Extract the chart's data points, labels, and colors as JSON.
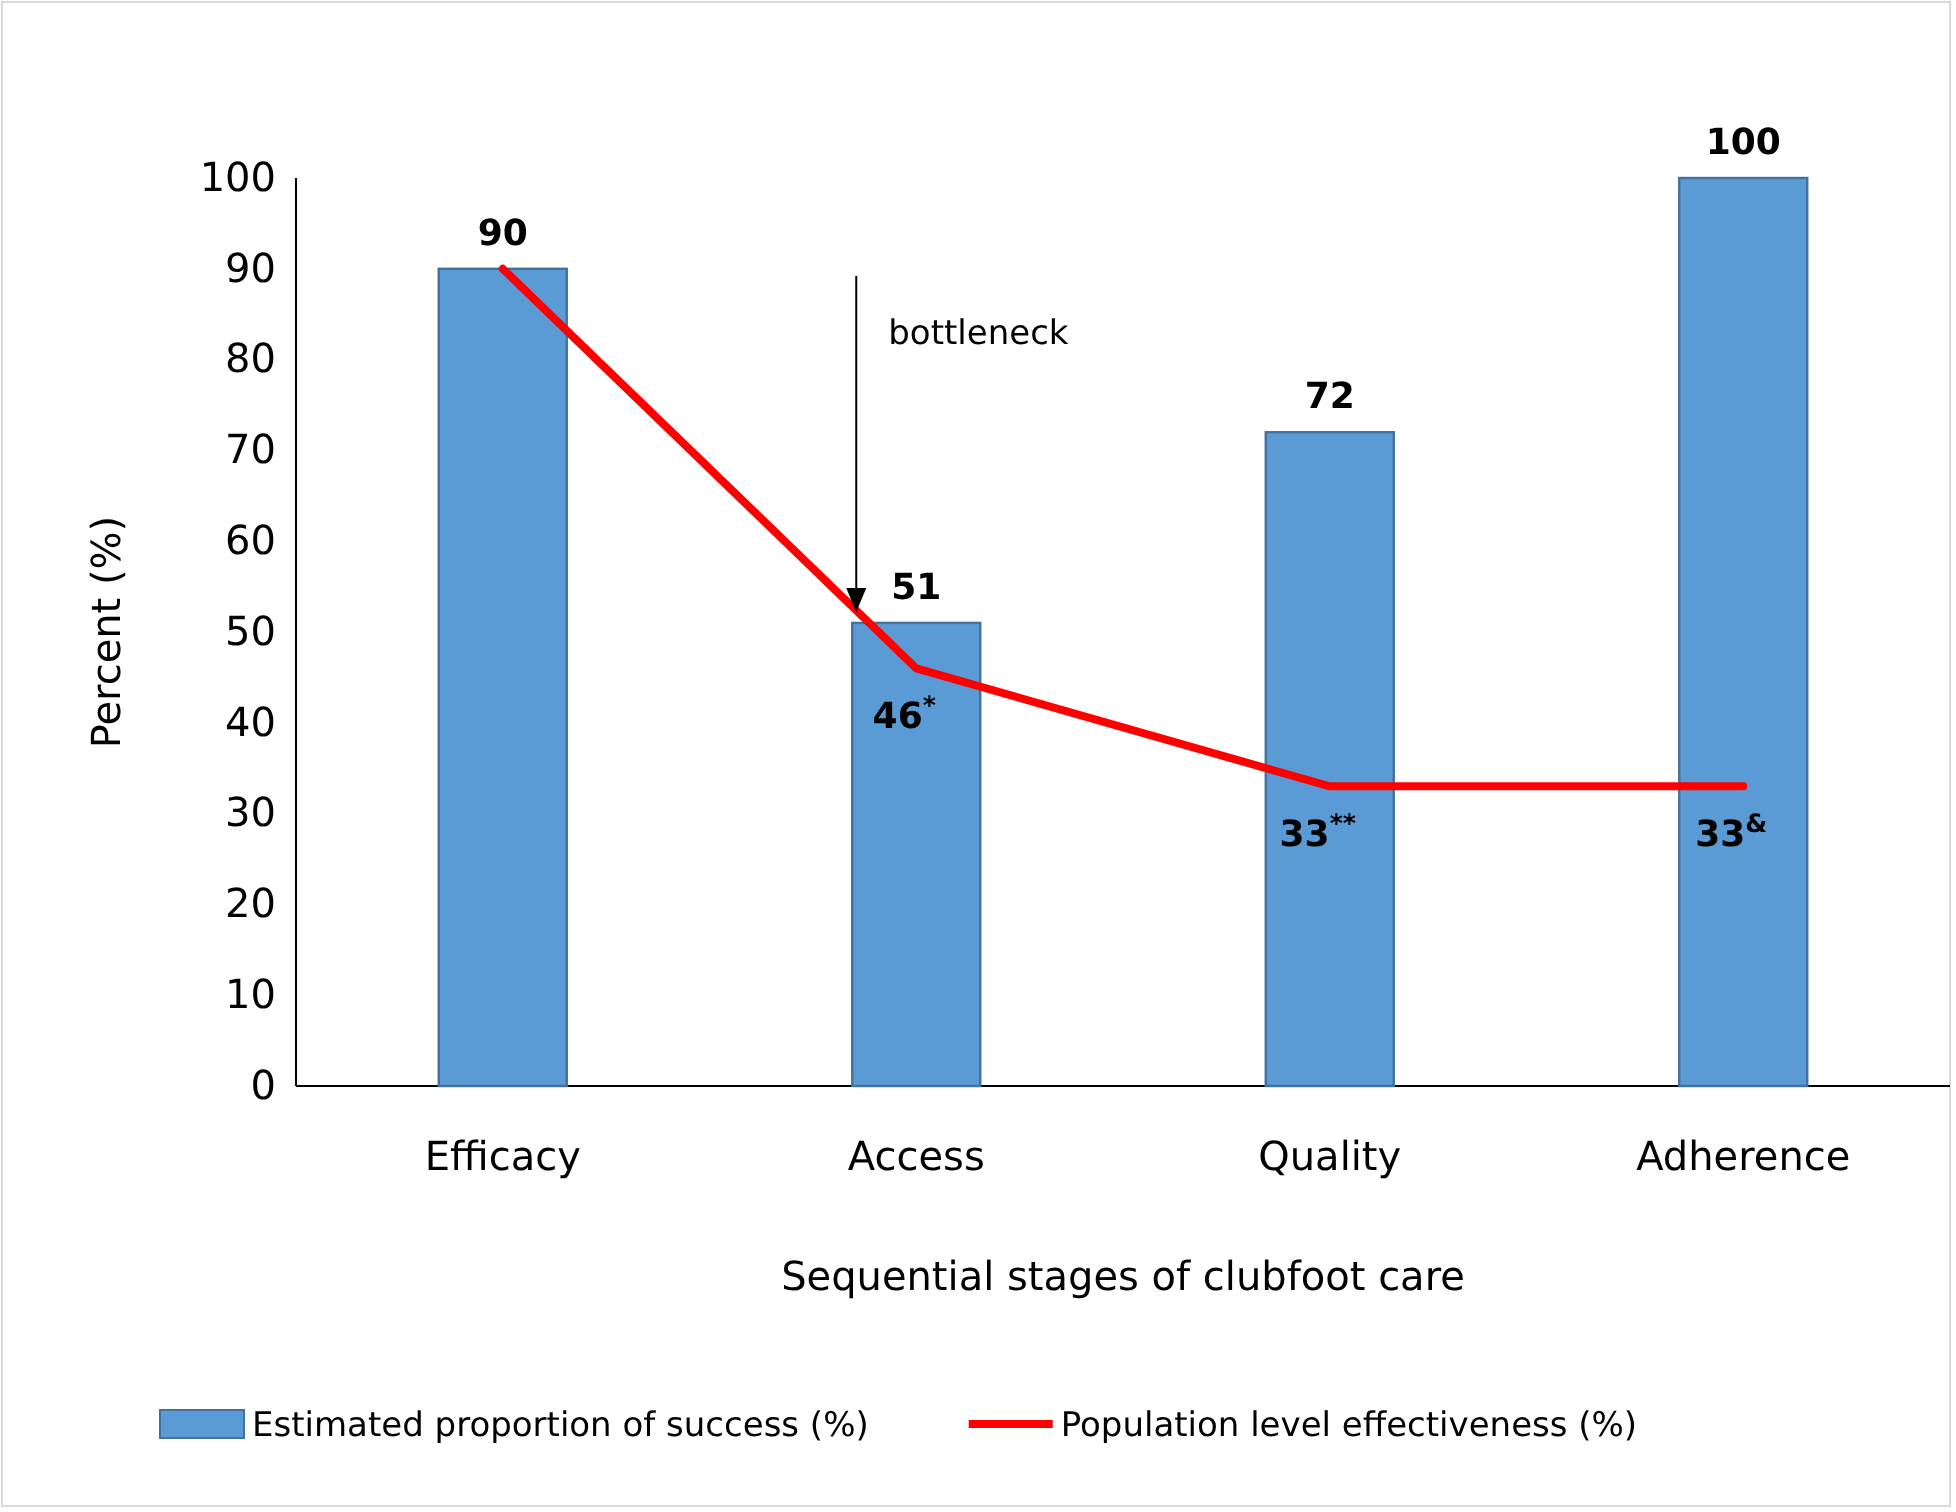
{
  "chart_data": {
    "type": "bar",
    "xlabel": "Sequential stages of clubfoot care",
    "ylabel": "Percent (%)",
    "categories": [
      "Efficacy",
      "Access",
      "Quality",
      "Adherence"
    ],
    "series": [
      {
        "name": "Estimated proportion of success (%)",
        "color": "#5b9bd5",
        "values": [
          90,
          51,
          72,
          100
        ],
        "value_labels": [
          "90",
          "51",
          "72",
          "100"
        ]
      },
      {
        "name": "Population level effectiveness (%)",
        "type": "line",
        "color": "#ff0000",
        "values": [
          90,
          46,
          33,
          33
        ],
        "value_labels": [
          null,
          "46$^{*}$",
          "33$^{**}$",
          "33$^{&}$"
        ]
      }
    ],
    "ylim": [
      0,
      100
    ],
    "yticks": [
      0,
      10,
      20,
      30,
      40,
      50,
      60,
      70,
      80,
      90,
      100
    ],
    "grid": false,
    "legend": "bottom",
    "marker": "none",
    "line_style": "solid",
    "annotations": [
      "bottleneck"
    ]
  }
}
